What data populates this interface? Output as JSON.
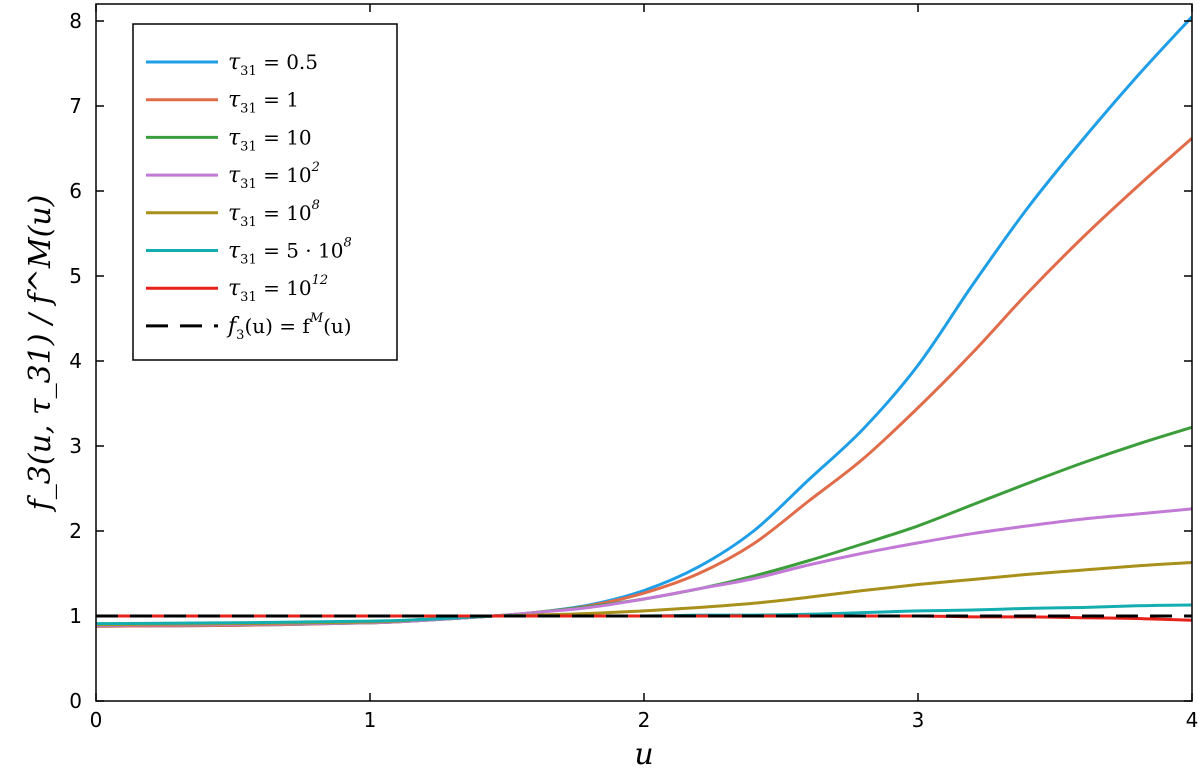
{
  "chart_data": {
    "type": "line",
    "title": "",
    "xlabel": "u",
    "ylabel": "f_3(u, τ_31) / f^M(u)",
    "xlim": [
      0,
      4
    ],
    "ylim": [
      0,
      8.2
    ],
    "x_ticks": [
      0,
      1,
      2,
      3,
      4
    ],
    "y_ticks": [
      0,
      1,
      2,
      3,
      4,
      5,
      6,
      7,
      8
    ],
    "grid": false,
    "legend_position": "top-left",
    "x": [
      0,
      0.5,
      1.0,
      1.2,
      1.45,
      1.6,
      1.8,
      2.0,
      2.2,
      2.4,
      2.6,
      2.8,
      3.0,
      3.2,
      3.4,
      3.6,
      3.8,
      4.0
    ],
    "series": [
      {
        "name": "τ31 = 0.5",
        "label": {
          "sym": "τ",
          "sub": "31",
          "rest": " = 0.5",
          "sup": ""
        },
        "color": "#1f9ee8",
        "dash": "solid",
        "values": [
          0.88,
          0.89,
          0.92,
          0.95,
          1.0,
          1.04,
          1.13,
          1.3,
          1.58,
          2.0,
          2.6,
          3.2,
          3.95,
          4.9,
          5.8,
          6.6,
          7.35,
          8.05
        ]
      },
      {
        "name": "τ31 = 1",
        "label": {
          "sym": "τ",
          "sub": "31",
          "rest": " = 1",
          "sup": ""
        },
        "color": "#e06c4a",
        "dash": "solid",
        "values": [
          0.88,
          0.89,
          0.92,
          0.95,
          1.0,
          1.04,
          1.12,
          1.27,
          1.5,
          1.85,
          2.35,
          2.85,
          3.45,
          4.1,
          4.8,
          5.45,
          6.05,
          6.62
        ]
      },
      {
        "name": "τ31 = 10",
        "label": {
          "sym": "τ",
          "sub": "31",
          "rest": " = 10",
          "sup": ""
        },
        "color": "#3b9e3b",
        "dash": "solid",
        "values": [
          0.89,
          0.9,
          0.92,
          0.95,
          1.0,
          1.04,
          1.11,
          1.2,
          1.32,
          1.47,
          1.65,
          1.85,
          2.06,
          2.31,
          2.56,
          2.8,
          3.02,
          3.22
        ]
      },
      {
        "name": "τ31 = 10^2",
        "label": {
          "sym": "τ",
          "sub": "31",
          "rest": " = 10",
          "sup": "2"
        },
        "color": "#c27ad6",
        "dash": "solid",
        "values": [
          0.89,
          0.9,
          0.92,
          0.95,
          1.0,
          1.04,
          1.1,
          1.2,
          1.32,
          1.44,
          1.6,
          1.74,
          1.86,
          1.97,
          2.06,
          2.14,
          2.2,
          2.26
        ]
      },
      {
        "name": "τ31 = 10^8",
        "label": {
          "sym": "τ",
          "sub": "31",
          "rest": " = 10",
          "sup": "8"
        },
        "color": "#a8901a",
        "dash": "solid",
        "values": [
          0.9,
          0.91,
          0.93,
          0.96,
          1.0,
          1.01,
          1.03,
          1.06,
          1.1,
          1.15,
          1.22,
          1.3,
          1.37,
          1.43,
          1.49,
          1.54,
          1.59,
          1.63
        ]
      },
      {
        "name": "τ31 = 5·10^8",
        "label": {
          "sym": "τ",
          "sub": "31",
          "rest": " = 5 · 10",
          "sup": "8"
        },
        "color": "#14adb0",
        "dash": "solid",
        "values": [
          0.91,
          0.92,
          0.94,
          0.96,
          1.0,
          1.0,
          1.0,
          1.0,
          1.01,
          1.01,
          1.02,
          1.04,
          1.06,
          1.07,
          1.09,
          1.1,
          1.12,
          1.13
        ]
      },
      {
        "name": "τ31 = 10^12",
        "label": {
          "sym": "τ",
          "sub": "31",
          "rest": " = 10",
          "sup": "12"
        },
        "color": "#e8201a",
        "dash": "solid",
        "values": [
          1.0,
          1.0,
          1.0,
          1.0,
          1.0,
          1.0,
          1.0,
          1.0,
          1.0,
          1.0,
          1.0,
          1.0,
          1.0,
          0.99,
          0.99,
          0.98,
          0.97,
          0.95
        ]
      },
      {
        "name": "f3(u) = f^M(u)",
        "label": {
          "sym": "f",
          "sub": "3",
          "rest": "(u) = f",
          "sup": "M",
          "tail": "(u)"
        },
        "color": "#000000",
        "dash": "dashed",
        "values": [
          1.0,
          1.0,
          1.0,
          1.0,
          1.0,
          1.0,
          1.0,
          1.0,
          1.0,
          1.0,
          1.0,
          1.0,
          1.0,
          1.0,
          1.0,
          1.0,
          1.0,
          1.0
        ]
      }
    ]
  }
}
